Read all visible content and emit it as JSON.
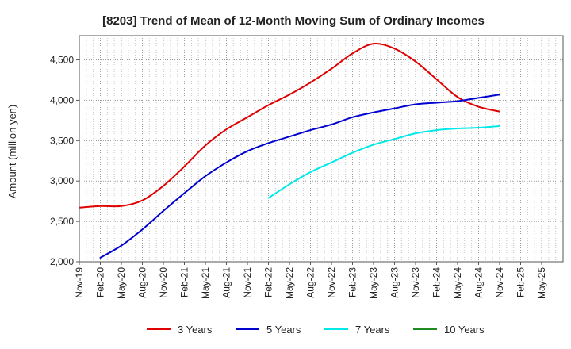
{
  "chart_data": {
    "type": "line",
    "title": "[8203]  Trend of Mean of 12-Month Moving Sum of Ordinary Incomes",
    "xlabel": "",
    "ylabel": "Amount (million yen)",
    "ylim": [
      2000,
      4800
    ],
    "yticks": [
      2000,
      2500,
      3000,
      3500,
      4000,
      4500
    ],
    "ytick_labels": [
      "2,000",
      "2,500",
      "3,000",
      "3,500",
      "4,000",
      "4,500"
    ],
    "categories": [
      "Nov-19",
      "Feb-20",
      "May-20",
      "Aug-20",
      "Nov-20",
      "Feb-21",
      "May-21",
      "Aug-21",
      "Nov-21",
      "Feb-22",
      "May-22",
      "Aug-22",
      "Nov-22",
      "Feb-23",
      "May-23",
      "Aug-23",
      "Nov-23",
      "Feb-24",
      "May-24",
      "Aug-24",
      "Nov-24",
      "Feb-25",
      "May-25"
    ],
    "grid": true,
    "legend_position": "bottom",
    "series": [
      {
        "name": "3 Years",
        "color": "#e00000",
        "values": [
          2670,
          2690,
          2690,
          2760,
          2940,
          3180,
          3440,
          3640,
          3790,
          3940,
          4070,
          4220,
          4390,
          4580,
          4700,
          4640,
          4480,
          4260,
          4040,
          3920,
          3860,
          null,
          null
        ]
      },
      {
        "name": "5 Years",
        "color": "#0000d0",
        "values": [
          null,
          2050,
          2200,
          2400,
          2630,
          2850,
          3060,
          3230,
          3370,
          3470,
          3550,
          3630,
          3700,
          3790,
          3850,
          3900,
          3950,
          3970,
          3990,
          4030,
          4070,
          null,
          null
        ]
      },
      {
        "name": "7 Years",
        "color": "#00e8e8",
        "values": [
          null,
          null,
          null,
          null,
          null,
          null,
          null,
          null,
          null,
          2790,
          2960,
          3110,
          3230,
          3350,
          3450,
          3520,
          3590,
          3630,
          3650,
          3660,
          3680,
          null,
          null
        ]
      },
      {
        "name": "10 Years",
        "color": "#228b22",
        "values": [
          null,
          null,
          null,
          null,
          null,
          null,
          null,
          null,
          null,
          null,
          null,
          null,
          null,
          null,
          null,
          null,
          null,
          null,
          null,
          null,
          null,
          null,
          null
        ]
      }
    ]
  }
}
